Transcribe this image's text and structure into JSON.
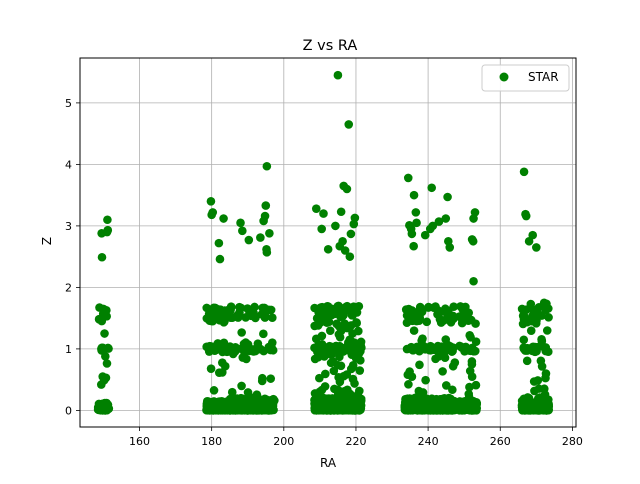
{
  "chart_data": {
    "type": "scatter",
    "title": "Z vs RA",
    "xlabel": "RA",
    "ylabel": "Z",
    "xlim": [
      143.5,
      281
    ],
    "ylim": [
      -0.27,
      5.73
    ],
    "xticks": [
      160,
      180,
      200,
      220,
      240,
      260,
      280
    ],
    "yticks": [
      0,
      1,
      2,
      3,
      4,
      5
    ],
    "xtick_labels": [
      "160",
      "180",
      "200",
      "220",
      "240",
      "260",
      "280"
    ],
    "ytick_labels": [
      "0",
      "1",
      "2",
      "3",
      "4",
      "5"
    ],
    "grid": true,
    "legend": {
      "position": "upper-right",
      "entries": [
        "STAR"
      ]
    },
    "series": [
      {
        "name": "STAR",
        "color": "#008000",
        "clusters": [
          {
            "x_range": [
              148.5,
              151.5
            ],
            "low_band": [
              0.0,
              0.12
            ],
            "count_low": 60,
            "count_mid": 10,
            "mid_band": [
              0.4,
              1.1
            ],
            "high_band": [
              1.45,
              1.7
            ],
            "count_high": 8
          },
          {
            "x_range": [
              178.5,
              184.5
            ],
            "low_band": [
              0.0,
              0.15
            ],
            "count_low": 140,
            "count_mid": 25,
            "mid_band": [
              0.3,
              1.3
            ],
            "high_band": [
              1.4,
              1.7
            ],
            "count_high": 25
          },
          {
            "x_range": [
              185.0,
              197.5
            ],
            "low_band": [
              0.0,
              0.2
            ],
            "count_low": 260,
            "count_mid": 40,
            "mid_band": [
              0.2,
              1.3
            ],
            "high_band": [
              1.5,
              1.7
            ],
            "count_high": 30
          },
          {
            "x_range": [
              208.5,
              221.5
            ],
            "low_band": [
              0.0,
              0.2
            ],
            "count_low": 380,
            "count_mid": 130,
            "mid_band": [
              0.2,
              1.4
            ],
            "high_band": [
              1.4,
              1.7
            ],
            "count_high": 60
          },
          {
            "x_range": [
              233.5,
              247.5
            ],
            "low_band": [
              0.0,
              0.2
            ],
            "count_low": 300,
            "count_mid": 60,
            "mid_band": [
              0.2,
              1.3
            ],
            "high_band": [
              1.4,
              1.7
            ],
            "count_high": 40
          },
          {
            "x_range": [
              248.5,
              253.5
            ],
            "low_band": [
              0.0,
              0.15
            ],
            "count_low": 110,
            "count_mid": 25,
            "mid_band": [
              0.2,
              1.3
            ],
            "high_band": [
              1.4,
              1.7
            ],
            "count_high": 14
          },
          {
            "x_range": [
              266.0,
              273.5
            ],
            "low_band": [
              0.0,
              0.2
            ],
            "count_low": 200,
            "count_mid": 35,
            "mid_band": [
              0.2,
              1.3
            ],
            "high_band": [
              1.4,
              1.75
            ],
            "count_high": 26
          }
        ],
        "points": [
          [
            149.5,
            2.88
          ],
          [
            149.6,
            2.49
          ],
          [
            151.0,
            2.9
          ],
          [
            151.1,
            3.1
          ],
          [
            151.2,
            2.93
          ],
          [
            150.0,
            1.65
          ],
          [
            150.3,
            1.25
          ],
          [
            149.8,
            0.55
          ],
          [
            150.7,
            0.53
          ],
          [
            149.4,
            0.42
          ],
          [
            179.8,
            3.4
          ],
          [
            180.0,
            3.18
          ],
          [
            180.3,
            3.22
          ],
          [
            182.0,
            2.72
          ],
          [
            182.3,
            2.46
          ],
          [
            183.3,
            3.12
          ],
          [
            188.0,
            3.05
          ],
          [
            188.5,
            2.92
          ],
          [
            190.3,
            2.77
          ],
          [
            193.5,
            2.81
          ],
          [
            194.4,
            3.08
          ],
          [
            194.8,
            3.16
          ],
          [
            195.0,
            3.33
          ],
          [
            195.2,
            2.62
          ],
          [
            195.3,
            2.57
          ],
          [
            195.3,
            3.97
          ],
          [
            196.0,
            2.88
          ],
          [
            209.0,
            3.28
          ],
          [
            210.5,
            2.95
          ],
          [
            211.0,
            3.2
          ],
          [
            212.3,
            2.62
          ],
          [
            214.3,
            3.0
          ],
          [
            215.0,
            5.45
          ],
          [
            215.5,
            2.67
          ],
          [
            215.9,
            3.23
          ],
          [
            216.3,
            2.75
          ],
          [
            216.6,
            3.65
          ],
          [
            217.0,
            2.6
          ],
          [
            217.5,
            3.6
          ],
          [
            218.0,
            4.65
          ],
          [
            218.3,
            2.5
          ],
          [
            218.6,
            2.87
          ],
          [
            219.4,
            3.03
          ],
          [
            219.7,
            3.13
          ],
          [
            234.5,
            3.78
          ],
          [
            234.8,
            3.01
          ],
          [
            235.3,
            2.95
          ],
          [
            235.5,
            2.87
          ],
          [
            236.0,
            2.67
          ],
          [
            236.1,
            3.5
          ],
          [
            236.6,
            3.22
          ],
          [
            236.8,
            3.05
          ],
          [
            239.2,
            2.85
          ],
          [
            240.6,
            2.95
          ],
          [
            241.0,
            3.62
          ],
          [
            241.3,
            3.0
          ],
          [
            243.0,
            3.07
          ],
          [
            244.9,
            3.12
          ],
          [
            245.4,
            3.47
          ],
          [
            245.6,
            2.75
          ],
          [
            246.0,
            2.65
          ],
          [
            252.2,
            2.78
          ],
          [
            252.5,
            2.75
          ],
          [
            252.6,
            3.12
          ],
          [
            253.0,
            3.22
          ],
          [
            252.6,
            2.1
          ],
          [
            266.6,
            3.88
          ],
          [
            267.0,
            3.19
          ],
          [
            267.2,
            3.16
          ],
          [
            268.0,
            2.75
          ],
          [
            269.0,
            2.85
          ],
          [
            270.0,
            2.65
          ]
        ]
      }
    ]
  }
}
